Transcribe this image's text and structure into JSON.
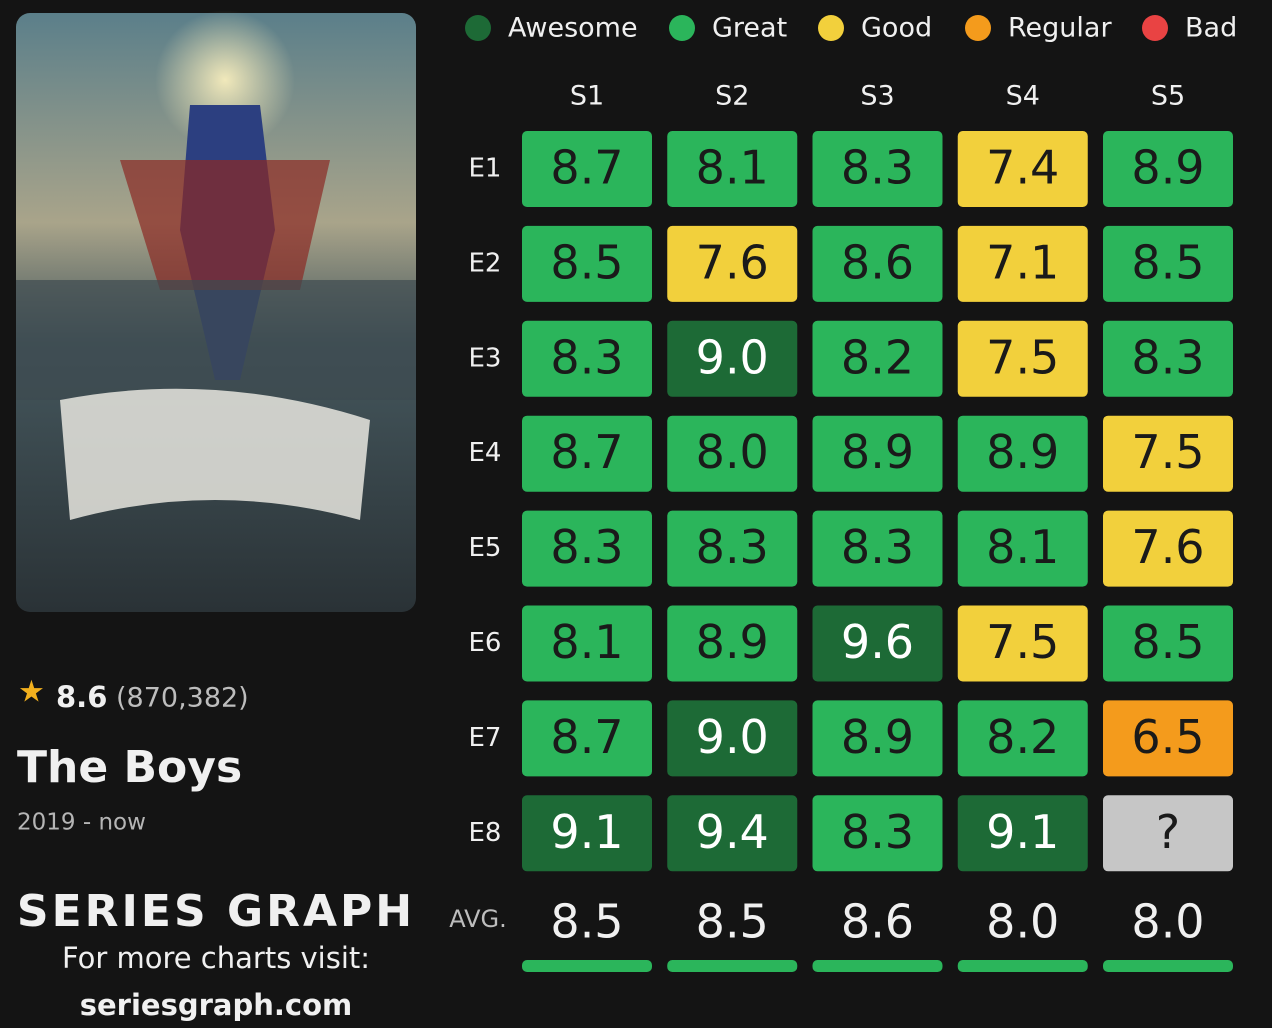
{
  "chart_data": {
    "type": "heatmap",
    "title": "The Boys",
    "rating": 8.6,
    "rating_count": {
      "value": 870382,
      "label": "(870,382)"
    },
    "years": "2019 - now",
    "legend": [
      {
        "name": "Awesome",
        "color": "#1d6a36"
      },
      {
        "name": "Great",
        "color": "#2bb55b"
      },
      {
        "name": "Good",
        "color": "#f2d03c"
      },
      {
        "name": "Regular",
        "color": "#f49b1c"
      },
      {
        "name": "Bad",
        "color": "#e94343"
      }
    ],
    "unknown_color": "#c6c6c6",
    "y_categories": [
      "E1",
      "E2",
      "E3",
      "E4",
      "E5",
      "E6",
      "E7",
      "E8"
    ],
    "series": [
      {
        "name": "S1",
        "values": [
          8.7,
          8.5,
          8.3,
          8.7,
          8.3,
          8.1,
          8.7,
          9.1
        ],
        "value_labels": [
          "8.7",
          "8.5",
          "8.3",
          "8.7",
          "8.3",
          "8.1",
          "8.7",
          "9.1"
        ]
      },
      {
        "name": "S2",
        "values": [
          8.1,
          7.6,
          9.0,
          8.0,
          8.3,
          8.9,
          9.0,
          9.4
        ],
        "value_labels": [
          "8.1",
          "7.6",
          "9.0",
          "8.0",
          "8.3",
          "8.9",
          "9.0",
          "9.4"
        ]
      },
      {
        "name": "S3",
        "values": [
          8.3,
          8.6,
          8.2,
          8.9,
          8.3,
          9.6,
          8.9,
          8.3
        ],
        "value_labels": [
          "8.3",
          "8.6",
          "8.2",
          "8.9",
          "8.3",
          "9.6",
          "8.9",
          "8.3"
        ]
      },
      {
        "name": "S4",
        "values": [
          7.4,
          7.1,
          7.5,
          8.9,
          8.1,
          7.5,
          8.2,
          9.1
        ],
        "value_labels": [
          "7.4",
          "7.1",
          "7.5",
          "8.9",
          "8.1",
          "7.5",
          "8.2",
          "9.1"
        ]
      },
      {
        "name": "S5",
        "values": [
          8.9,
          8.5,
          8.3,
          7.5,
          7.6,
          8.5,
          6.5,
          null
        ],
        "value_labels": [
          "8.9",
          "8.5",
          "8.3",
          "7.5",
          "7.6",
          "8.5",
          "6.5",
          "?"
        ]
      }
    ],
    "average_label": "AVG.",
    "averages": [
      8.5,
      8.5,
      8.6,
      8.0,
      8.0
    ],
    "average_labels": [
      "8.5",
      "8.5",
      "8.6",
      "8.0",
      "8.0"
    ]
  },
  "branding": {
    "name": "SERIES GRAPH",
    "tagline": "For more charts visit:",
    "url": "seriesgraph.com"
  }
}
